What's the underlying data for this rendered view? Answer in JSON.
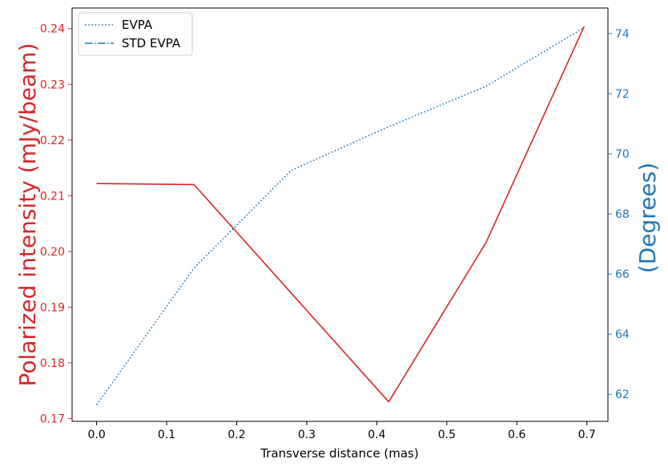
{
  "chart_data": {
    "type": "line",
    "xlabel": "Transverse distance (mas)",
    "ylabel_left": "Polarized intensity (mJy/beam)",
    "ylabel_right": "(Degrees)",
    "xlim": [
      -0.035,
      0.73
    ],
    "ylim_left": [
      0.1695,
      0.2437
    ],
    "ylim_right": [
      61.1,
      74.85
    ],
    "x_ticks": [
      "0.0",
      "0.1",
      "0.2",
      "0.3",
      "0.4",
      "0.5",
      "0.6",
      "0.7"
    ],
    "y_left_ticks": [
      "0.17",
      "0.18",
      "0.19",
      "0.20",
      "0.21",
      "0.22",
      "0.23",
      "0.24"
    ],
    "y_right_ticks": [
      "62",
      "64",
      "66",
      "68",
      "70",
      "72",
      "74"
    ],
    "x": [
      0.0,
      0.139,
      0.278,
      0.417,
      0.556,
      0.696
    ],
    "series": [
      {
        "name": "",
        "axis": "left",
        "color": "#d62728",
        "style": "solid",
        "values": [
          0.2122,
          0.212,
          null,
          0.173,
          0.2016,
          0.2404
        ]
      },
      {
        "name": "EVPA",
        "axis": "right",
        "color": "#1f77b4",
        "style": "dotted",
        "values": [
          61.65,
          66.2,
          69.45,
          70.9,
          72.25,
          74.2
        ]
      }
    ],
    "legend": {
      "position": "top-left",
      "entries": [
        {
          "label": "EVPA",
          "style": "dotted",
          "color": "#1f77b4"
        },
        {
          "label": "STD EVPA",
          "style": "dashdot",
          "color": "#1f77b4"
        }
      ]
    },
    "colors": {
      "left_axis": "#d62728",
      "right_axis": "#1f77b4"
    }
  }
}
